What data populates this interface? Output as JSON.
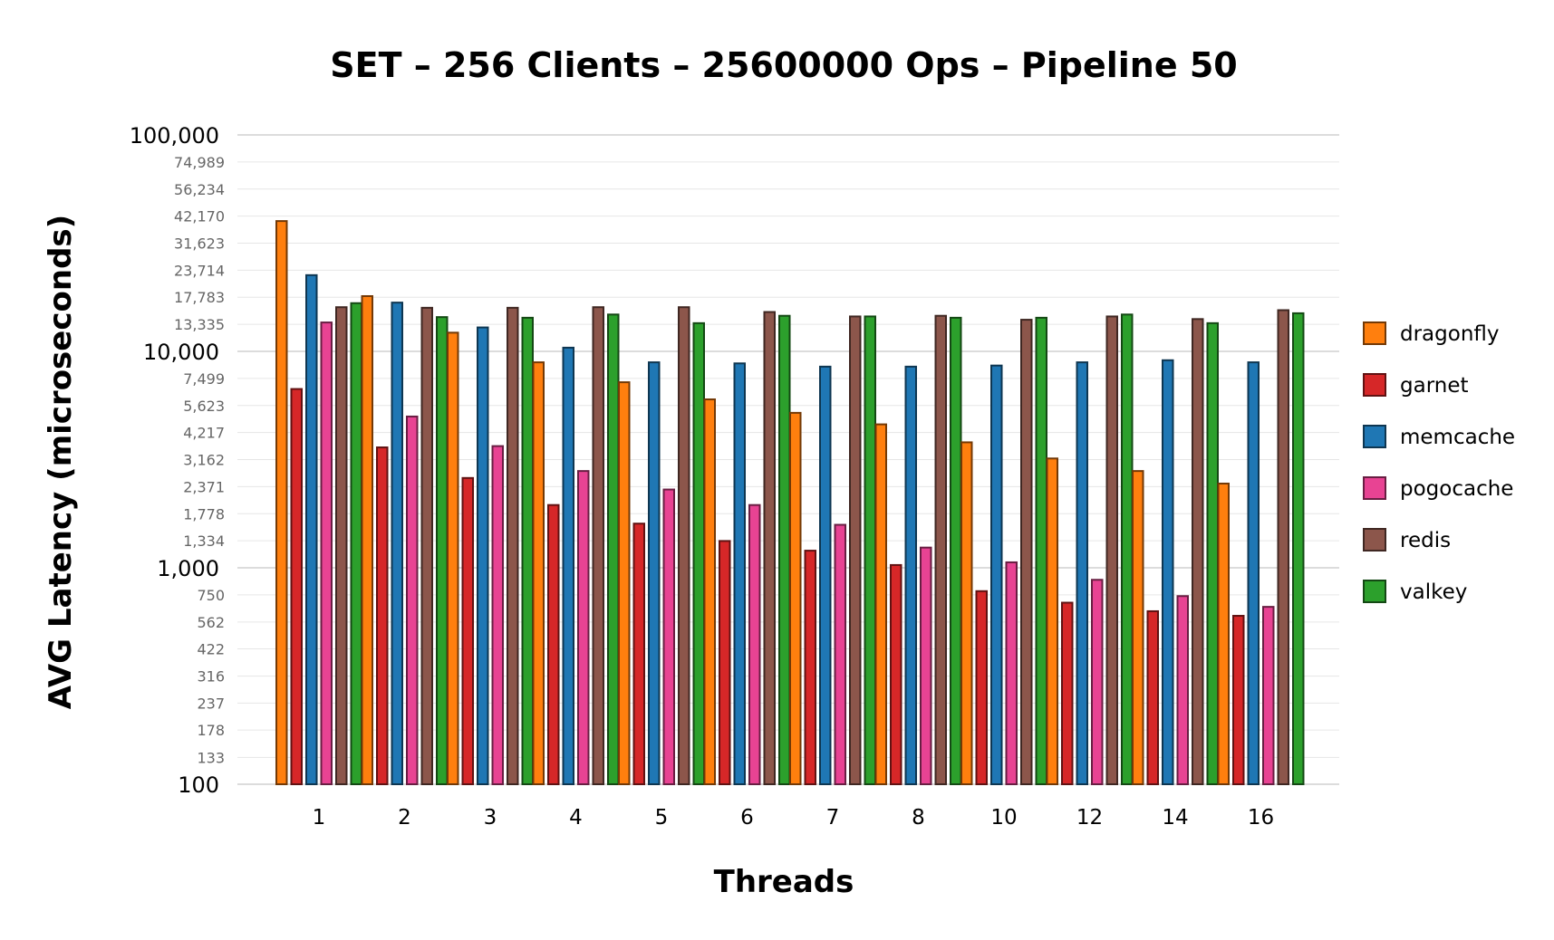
{
  "chart_data": {
    "type": "bar",
    "title": "SET – 256 Clients – 25600000 Ops – Pipeline 50",
    "xlabel": "Threads",
    "ylabel": "AVG Latency (microseconds)",
    "y_scale": "log",
    "ylim": [
      100,
      100000
    ],
    "grid": "horizontal",
    "legend_position": "right",
    "y_ticks_major": [
      "100",
      "1,000",
      "10,000",
      "100,000"
    ],
    "y_ticks_minor": [
      "133",
      "178",
      "237",
      "316",
      "422",
      "562",
      "750",
      "1,334",
      "1,778",
      "2,371",
      "3,162",
      "4,217",
      "5,623",
      "7,499",
      "13,335",
      "17,783",
      "23,714",
      "31,623",
      "42,170",
      "56,234",
      "74,989"
    ],
    "categories": [
      "1",
      "2",
      "3",
      "4",
      "5",
      "6",
      "7",
      "8",
      "10",
      "12",
      "14",
      "16"
    ],
    "series": [
      {
        "name": "dragonfly",
        "color": "#ff7f0e",
        "values": [
          40000,
          18000,
          12200,
          8900,
          7200,
          6000,
          5200,
          4600,
          3800,
          3200,
          2800,
          2450
        ]
      },
      {
        "name": "garnet",
        "color": "#d62728",
        "values": [
          6700,
          3600,
          2600,
          1950,
          1600,
          1330,
          1200,
          1030,
          780,
          690,
          630,
          600
        ]
      },
      {
        "name": "memcache",
        "color": "#1f77b4",
        "values": [
          22500,
          16800,
          12900,
          10400,
          8900,
          8800,
          8500,
          8500,
          8600,
          8900,
          9100,
          8900
        ]
      },
      {
        "name": "pogocache",
        "color": "#e84393",
        "values": [
          13600,
          5000,
          3650,
          2800,
          2300,
          1950,
          1580,
          1240,
          1060,
          880,
          740,
          660
        ]
      },
      {
        "name": "redis",
        "color": "#8c564b",
        "values": [
          16000,
          15900,
          15900,
          16000,
          16000,
          15200,
          14500,
          14600,
          14000,
          14500,
          14100,
          15500
        ]
      },
      {
        "name": "valkey",
        "color": "#2ca02c",
        "values": [
          16700,
          14400,
          14300,
          14800,
          13500,
          14600,
          14500,
          14300,
          14300,
          14800,
          13500,
          15000
        ]
      }
    ]
  }
}
